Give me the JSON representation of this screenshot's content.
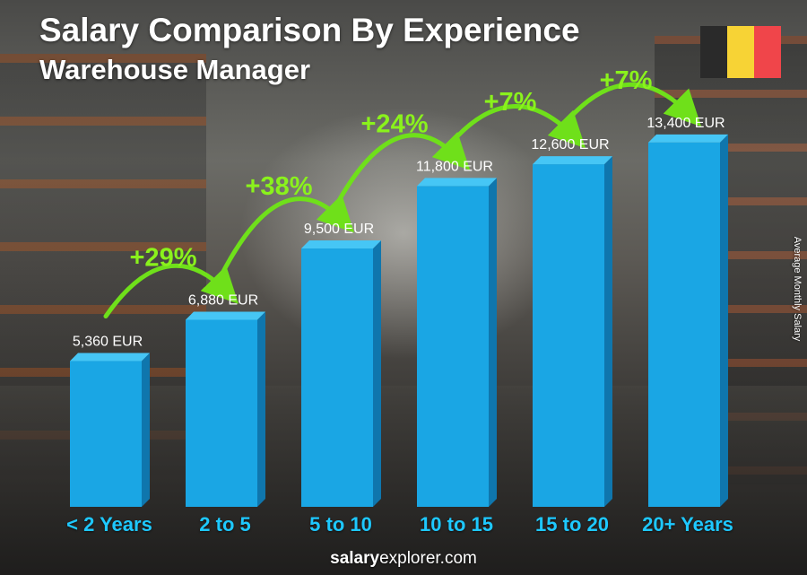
{
  "title": "Salary Comparison By Experience",
  "subtitle": "Warehouse Manager",
  "flag_colors": [
    "#2a2a2a",
    "#f7d335",
    "#f0454a"
  ],
  "colors": {
    "bar_front": "#1aa6e4",
    "bar_side": "#0f76ad",
    "bar_top": "#46c6f5",
    "category_text": "#1ec8ff",
    "change_text": "#8af21c",
    "arrow": "#6fe01a"
  },
  "chart_data": {
    "type": "bar",
    "categories": [
      "< 2 Years",
      "2 to 5",
      "5 to 10",
      "10 to 15",
      "15 to 20",
      "20+ Years"
    ],
    "values": [
      5360,
      6880,
      9500,
      11800,
      12600,
      13400
    ],
    "value_labels": [
      "5,360 EUR",
      "6,880 EUR",
      "9,500 EUR",
      "11,800 EUR",
      "12,600 EUR",
      "13,400 EUR"
    ],
    "changes": [
      "+29%",
      "+38%",
      "+24%",
      "+7%",
      "+7%"
    ],
    "ylabel": "Average Monthly Salary",
    "xlabel": "",
    "ylim": [
      0,
      16000
    ]
  },
  "footer": {
    "brand_bold": "salary",
    "brand_rest": "explorer.com"
  }
}
